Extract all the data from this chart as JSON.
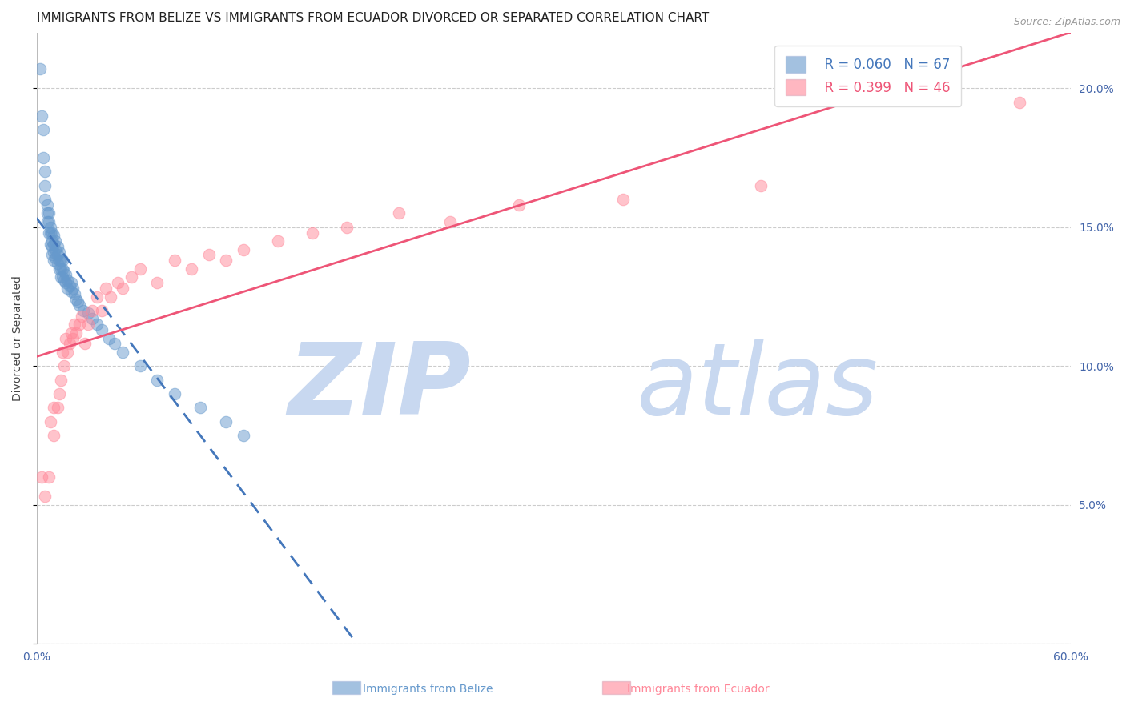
{
  "title": "IMMIGRANTS FROM BELIZE VS IMMIGRANTS FROM ECUADOR DIVORCED OR SEPARATED CORRELATION CHART",
  "source": "Source: ZipAtlas.com",
  "ylabel_left": "Divorced or Separated",
  "xlabel_center_left": "Immigrants from Belize",
  "xlabel_center_right": "Immigrants from Ecuador",
  "xmin": 0.0,
  "xmax": 0.6,
  "ymin": 0.0,
  "ymax": 0.22,
  "yticks": [
    0.0,
    0.05,
    0.1,
    0.15,
    0.2
  ],
  "ytick_labels": [
    "",
    "5.0%",
    "10.0%",
    "15.0%",
    "20.0%"
  ],
  "xticks": [
    0.0,
    0.1,
    0.2,
    0.3,
    0.4,
    0.5,
    0.6
  ],
  "xtick_labels": [
    "0.0%",
    "",
    "",
    "",
    "",
    "",
    "60.0%"
  ],
  "belize_R": 0.06,
  "belize_N": 67,
  "ecuador_R": 0.399,
  "ecuador_N": 46,
  "belize_color": "#6699CC",
  "ecuador_color": "#FF8899",
  "belize_line_color": "#4477BB",
  "ecuador_line_color": "#EE5577",
  "belize_x": [
    0.002,
    0.003,
    0.004,
    0.004,
    0.005,
    0.005,
    0.005,
    0.006,
    0.006,
    0.006,
    0.007,
    0.007,
    0.007,
    0.008,
    0.008,
    0.008,
    0.009,
    0.009,
    0.009,
    0.009,
    0.01,
    0.01,
    0.01,
    0.01,
    0.011,
    0.011,
    0.011,
    0.012,
    0.012,
    0.012,
    0.013,
    0.013,
    0.013,
    0.014,
    0.014,
    0.014,
    0.015,
    0.015,
    0.015,
    0.016,
    0.016,
    0.017,
    0.017,
    0.018,
    0.018,
    0.019,
    0.02,
    0.02,
    0.021,
    0.022,
    0.023,
    0.024,
    0.025,
    0.027,
    0.03,
    0.032,
    0.035,
    0.038,
    0.042,
    0.045,
    0.05,
    0.06,
    0.07,
    0.08,
    0.095,
    0.11,
    0.12
  ],
  "belize_y": [
    0.207,
    0.19,
    0.185,
    0.175,
    0.17,
    0.165,
    0.16,
    0.158,
    0.155,
    0.152,
    0.155,
    0.152,
    0.148,
    0.15,
    0.148,
    0.144,
    0.148,
    0.145,
    0.143,
    0.14,
    0.147,
    0.144,
    0.141,
    0.138,
    0.145,
    0.142,
    0.139,
    0.143,
    0.14,
    0.137,
    0.141,
    0.138,
    0.135,
    0.138,
    0.135,
    0.132,
    0.138,
    0.135,
    0.132,
    0.134,
    0.131,
    0.133,
    0.13,
    0.131,
    0.128,
    0.129,
    0.13,
    0.127,
    0.128,
    0.126,
    0.124,
    0.123,
    0.122,
    0.12,
    0.119,
    0.117,
    0.115,
    0.113,
    0.11,
    0.108,
    0.105,
    0.1,
    0.095,
    0.09,
    0.085,
    0.08,
    0.075
  ],
  "ecuador_x": [
    0.003,
    0.005,
    0.007,
    0.008,
    0.01,
    0.01,
    0.012,
    0.013,
    0.014,
    0.015,
    0.016,
    0.017,
    0.018,
    0.019,
    0.02,
    0.021,
    0.022,
    0.023,
    0.025,
    0.026,
    0.028,
    0.03,
    0.032,
    0.035,
    0.038,
    0.04,
    0.043,
    0.047,
    0.05,
    0.055,
    0.06,
    0.07,
    0.08,
    0.09,
    0.1,
    0.11,
    0.12,
    0.14,
    0.16,
    0.18,
    0.21,
    0.24,
    0.28,
    0.34,
    0.42,
    0.57
  ],
  "ecuador_y": [
    0.06,
    0.053,
    0.06,
    0.08,
    0.075,
    0.085,
    0.085,
    0.09,
    0.095,
    0.105,
    0.1,
    0.11,
    0.105,
    0.108,
    0.112,
    0.11,
    0.115,
    0.112,
    0.115,
    0.118,
    0.108,
    0.115,
    0.12,
    0.125,
    0.12,
    0.128,
    0.125,
    0.13,
    0.128,
    0.132,
    0.135,
    0.13,
    0.138,
    0.135,
    0.14,
    0.138,
    0.142,
    0.145,
    0.148,
    0.15,
    0.155,
    0.152,
    0.158,
    0.16,
    0.165,
    0.195
  ],
  "background_color": "#FFFFFF",
  "grid_color": "#CCCCCC",
  "axis_color": "#4466AA",
  "watermark_zip": "ZIP",
  "watermark_atlas": "atlas",
  "watermark_color_zip": "#C8D8F0",
  "watermark_color_atlas": "#C8D8F0",
  "title_fontsize": 11,
  "axis_label_fontsize": 10,
  "tick_fontsize": 10,
  "legend_fontsize": 12
}
